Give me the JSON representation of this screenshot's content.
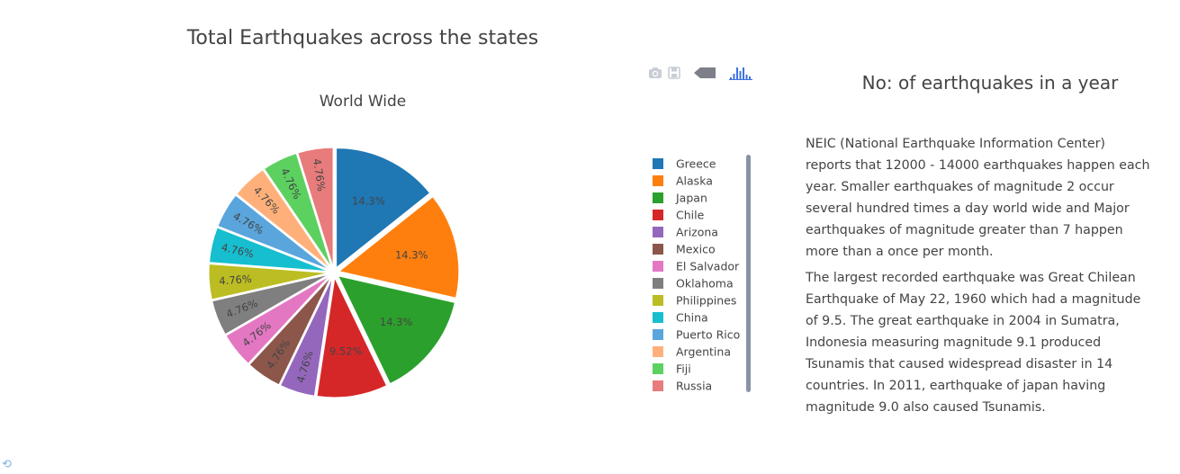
{
  "page": {
    "title": "Total Earthquakes across the states"
  },
  "modebar": {
    "icons": [
      "camera-icon",
      "save-icon",
      "tag-icon",
      "bar-chart-icon"
    ],
    "colors": {
      "idle": "#c9ced6",
      "active": "#3d72e0",
      "tag": "#7d8089"
    }
  },
  "chart_data": {
    "type": "pie",
    "title": "World Wide",
    "labels": [
      "Greece",
      "Alaska",
      "Japan",
      "Chile",
      "Arizona",
      "Mexico",
      "El Salvador",
      "Oklahoma",
      "Philippines",
      "China",
      "Puerto Rico",
      "Argentina",
      "Fiji",
      "Russia"
    ],
    "values": [
      3,
      3,
      3,
      2,
      1,
      1,
      1,
      1,
      1,
      1,
      1,
      1,
      1,
      1
    ],
    "percent_labels": [
      "14.3%",
      "14.3%",
      "14.3%",
      "9.52%",
      "4.76%",
      "4.76%",
      "4.76%",
      "4.76%",
      "4.76%",
      "4.76%",
      "4.76%",
      "4.76%",
      "4.76%",
      "4.76%"
    ],
    "colors": [
      "#1f77b4",
      "#ff7f0e",
      "#2ca02c",
      "#d62728",
      "#9467bd",
      "#8c564b",
      "#e377c2",
      "#7f7f7f",
      "#bcbd22",
      "#17becf",
      "#5aa5dc",
      "#ffb07a",
      "#5cd160",
      "#e87b7b"
    ],
    "exploded": true,
    "direction": "clockwise",
    "legend_position": "right",
    "legend_scrollbar": true
  },
  "side_panel": {
    "title": "No: of earthquakes in a year",
    "paragraphs": [
      "NEIC (National Earthquake Information Center) reports that 12000 - 14000 earthquakes happen each year. Smaller earthquakes of magnitude 2 occur several hundred times a day world wide and Major earthquakes of magnitude greater than 7 happen more than a once per month.",
      "The largest recorded earthquake was Great Chilean Earthquake of May 22, 1960 which had a magnitude of 9.5. The great earthquake in 2004 in Sumatra, Indonesia measuring magnitude 9.1 produced Tsunamis that caused widespread disaster in 14 countries. In 2011, earthquake of japan having magnitude 9.0 also caused Tsunamis."
    ]
  }
}
